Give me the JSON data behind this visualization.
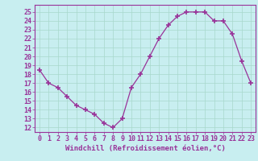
{
  "x": [
    0,
    1,
    2,
    3,
    4,
    5,
    6,
    7,
    8,
    9,
    10,
    11,
    12,
    13,
    14,
    15,
    16,
    17,
    18,
    19,
    20,
    21,
    22,
    23
  ],
  "y": [
    18.5,
    17.0,
    16.5,
    15.5,
    14.5,
    14.0,
    13.5,
    12.5,
    12.0,
    13.0,
    16.5,
    18.0,
    20.0,
    22.0,
    23.5,
    24.5,
    25.0,
    25.0,
    25.0,
    24.0,
    24.0,
    22.5,
    19.5,
    17.0
  ],
  "line_color": "#993399",
  "marker": "+",
  "marker_size": 4,
  "marker_linewidth": 1.2,
  "line_width": 0.9,
  "bg_color": "#c8eef0",
  "grid_color": "#a8d8cc",
  "xlabel": "Windchill (Refroidissement éolien,°C)",
  "ylabel_ticks": [
    12,
    13,
    14,
    15,
    16,
    17,
    18,
    19,
    20,
    21,
    22,
    23,
    24,
    25
  ],
  "ylim": [
    11.5,
    25.8
  ],
  "xlim": [
    -0.5,
    23.5
  ],
  "xlabel_fontsize": 6.5,
  "tick_fontsize": 6.0,
  "tick_color": "#993399",
  "axis_color": "#993399",
  "spine_color": "#993399"
}
